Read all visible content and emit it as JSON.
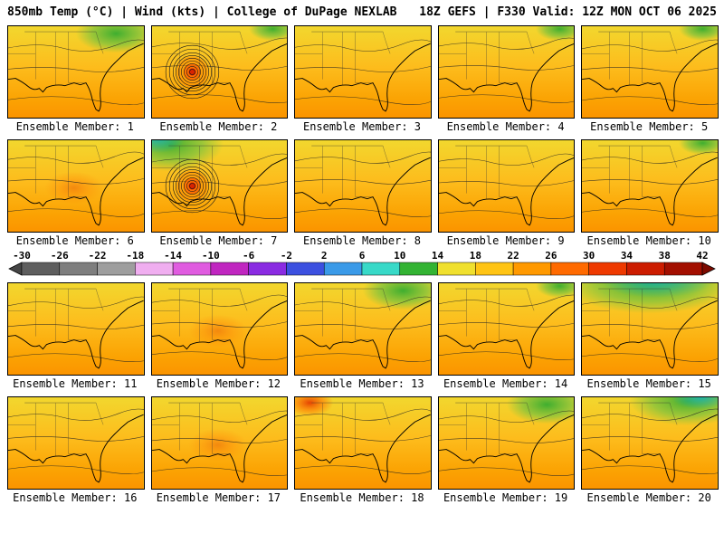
{
  "header": {
    "left": "850mb Temp (°C) | Wind (kts) | College of DuPage NEXLAB",
    "right": "18Z GEFS | F330 Valid: 12Z MON OCT 06 2025"
  },
  "colorbar": {
    "ticks": [
      -30,
      -26,
      -22,
      -18,
      -14,
      -10,
      -6,
      -2,
      2,
      6,
      10,
      14,
      18,
      22,
      26,
      30,
      34,
      38,
      42
    ],
    "segment_colors": [
      "#5e5e5e",
      "#7e7e7e",
      "#9e9e9e",
      "#f0aef0",
      "#e05ce0",
      "#c026c0",
      "#8a2be2",
      "#3c50e0",
      "#3a9ae8",
      "#38d9c8",
      "#33b333",
      "#f0e02e",
      "#ffc414",
      "#ff9900",
      "#ff6a00",
      "#ee3900",
      "#cc1c00",
      "#a30f00"
    ],
    "left_arrow_color": "#454545",
    "right_arrow_color": "#7d0a00"
  },
  "map_colors": {
    "base_top": "#f2d72e",
    "base_mid": "#fdbc1c",
    "base_low": "#fba303",
    "base_bottom": "#fb9400",
    "cool_green": "#3fae2f",
    "cool_light": "#8cc43a",
    "cool_teal": "#23b3a6",
    "hot_red": "#e33b00",
    "hot_orange": "#ff7300",
    "storm_outer": "#ff8c00",
    "storm_mid": "#ff5e00",
    "storm_core": "#d92400",
    "contour": "#222222",
    "coast": "#000000"
  },
  "panels": [
    {
      "member": 1,
      "label": "Ensemble Member: 1",
      "features": [
        "cool-ne"
      ]
    },
    {
      "member": 2,
      "label": "Ensemble Member: 2",
      "features": [
        "storm",
        "cool-ne-small"
      ]
    },
    {
      "member": 3,
      "label": "Ensemble Member: 3",
      "features": []
    },
    {
      "member": 4,
      "label": "Ensemble Member: 4",
      "features": [
        "cool-ne-small"
      ]
    },
    {
      "member": 5,
      "label": "Ensemble Member: 5",
      "features": [
        "cool-ne-small"
      ]
    },
    {
      "member": 6,
      "label": "Ensemble Member: 6",
      "features": [
        "warm-core"
      ]
    },
    {
      "member": 7,
      "label": "Ensemble Member: 7",
      "features": [
        "storm",
        "cool-nw"
      ]
    },
    {
      "member": 8,
      "label": "Ensemble Member: 8",
      "features": []
    },
    {
      "member": 9,
      "label": "Ensemble Member: 9",
      "features": []
    },
    {
      "member": 10,
      "label": "Ensemble Member: 10",
      "features": [
        "cool-ne-small"
      ]
    },
    {
      "member": 11,
      "label": "Ensemble Member: 11",
      "features": []
    },
    {
      "member": 12,
      "label": "Ensemble Member: 12",
      "features": [
        "warm-core"
      ]
    },
    {
      "member": 13,
      "label": "Ensemble Member: 13",
      "features": [
        "cool-ne"
      ]
    },
    {
      "member": 14,
      "label": "Ensemble Member: 14",
      "features": [
        "cool-ne-small"
      ]
    },
    {
      "member": 15,
      "label": "Ensemble Member: 15",
      "features": [
        "cool-n-large"
      ]
    },
    {
      "member": 16,
      "label": "Ensemble Member: 16",
      "features": []
    },
    {
      "member": 17,
      "label": "Ensemble Member: 17",
      "features": [
        "warm-core"
      ]
    },
    {
      "member": 18,
      "label": "Ensemble Member: 18",
      "features": [
        "hot-nw"
      ]
    },
    {
      "member": 19,
      "label": "Ensemble Member: 19",
      "features": [
        "cool-ne"
      ]
    },
    {
      "member": 20,
      "label": "Ensemble Member: 20",
      "features": [
        "cool-ne-large"
      ]
    }
  ]
}
